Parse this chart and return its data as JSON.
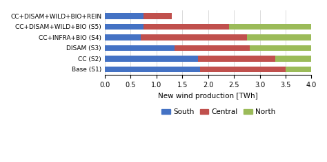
{
  "categories": [
    "CC+DISAM+WILD+BIO+REIN",
    "CC+DISAM+WILD+BIO (S5)",
    "CC+INFRA+BIO (S4)",
    "DISAM (S3)",
    "CC (S2)",
    "Base (S1)"
  ],
  "south": [
    0.75,
    0.75,
    0.7,
    1.35,
    1.8,
    1.85
  ],
  "central": [
    0.55,
    1.65,
    2.05,
    1.45,
    1.5,
    1.65
  ],
  "north": [
    0.0,
    1.6,
    1.25,
    1.2,
    0.7,
    0.5
  ],
  "colors": {
    "south": "#4472C4",
    "central": "#C0504D",
    "north": "#9BBB59"
  },
  "xlabel": "New wind production [TWh]",
  "xlim": [
    0.0,
    4.0
  ],
  "xticks": [
    0.0,
    0.5,
    1.0,
    1.5,
    2.0,
    2.5,
    3.0,
    3.5,
    4.0
  ],
  "legend_labels": [
    "South",
    "Central",
    "North"
  ],
  "background_color": "#FFFFFF"
}
